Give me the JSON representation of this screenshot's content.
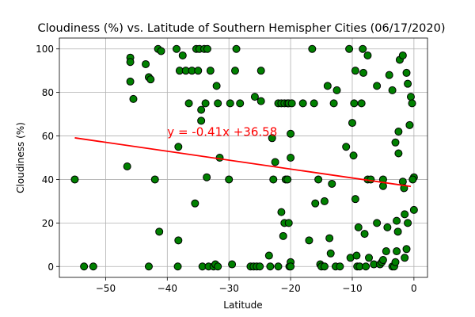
{
  "chart_data": {
    "type": "scatter",
    "title": "Cloudiness (%) vs. Latitude of Southern Hemispher Cities (06/17/2020)",
    "xlabel": "Latitude",
    "ylabel": "Cloudiness (%)",
    "xlim": [
      -57.5,
      2.2
    ],
    "ylim": [
      -5,
      105
    ],
    "xticks": [
      -50,
      -40,
      -30,
      -20,
      -10,
      0
    ],
    "yticks": [
      0,
      20,
      40,
      60,
      80,
      100
    ],
    "grid": true,
    "marker_color": "#008000",
    "marker_edge": "#000000",
    "line_color": "#ff0000",
    "annotation": {
      "text": "y = -0.41x +36.58",
      "x": -40,
      "y": 60
    },
    "regression": {
      "slope": -0.41,
      "intercept": 36.58,
      "x_range": [
        -55,
        -0.5
      ]
    },
    "points": [
      [
        -55,
        40
      ],
      [
        -53.5,
        0
      ],
      [
        -52,
        0
      ],
      [
        -46.5,
        46
      ],
      [
        -46,
        96
      ],
      [
        -46,
        94
      ],
      [
        -46,
        85
      ],
      [
        -45.5,
        77
      ],
      [
        -43.5,
        93
      ],
      [
        -43,
        87
      ],
      [
        -43,
        0
      ],
      [
        -42.7,
        86
      ],
      [
        -42,
        40
      ],
      [
        -41.5,
        100
      ],
      [
        -41.3,
        16
      ],
      [
        -41,
        99
      ],
      [
        -38.5,
        100
      ],
      [
        -38.3,
        0
      ],
      [
        -38.2,
        55
      ],
      [
        -38.2,
        12
      ],
      [
        -38,
        90
      ],
      [
        -37.5,
        97
      ],
      [
        -37,
        90
      ],
      [
        -36.5,
        75
      ],
      [
        -36,
        90
      ],
      [
        -35.5,
        29
      ],
      [
        -35.3,
        100
      ],
      [
        -35,
        90
      ],
      [
        -34.8,
        100
      ],
      [
        -34.5,
        67
      ],
      [
        -34.5,
        72
      ],
      [
        -34.3,
        0
      ],
      [
        -34,
        100
      ],
      [
        -33.8,
        75
      ],
      [
        -33.6,
        41
      ],
      [
        -33.5,
        100
      ],
      [
        -33.3,
        0
      ],
      [
        -33,
        90
      ],
      [
        -32.5,
        0
      ],
      [
        -32.2,
        1
      ],
      [
        -32,
        83
      ],
      [
        -31.8,
        0
      ],
      [
        -31.8,
        75
      ],
      [
        -31.5,
        50
      ],
      [
        -30,
        40
      ],
      [
        -29.8,
        75
      ],
      [
        -29.5,
        1
      ],
      [
        -29,
        90
      ],
      [
        -28.8,
        100
      ],
      [
        -28.2,
        75
      ],
      [
        -26.5,
        0
      ],
      [
        -26,
        0
      ],
      [
        -25.8,
        78
      ],
      [
        -25.5,
        0
      ],
      [
        -25,
        0
      ],
      [
        -24.8,
        76
      ],
      [
        -24.8,
        90
      ],
      [
        -23.5,
        5
      ],
      [
        -23.3,
        0
      ],
      [
        -23,
        59
      ],
      [
        -22.8,
        40
      ],
      [
        -22.5,
        48
      ],
      [
        -22,
        75
      ],
      [
        -22,
        0
      ],
      [
        -21.5,
        75
      ],
      [
        -21.5,
        25
      ],
      [
        -21.2,
        14
      ],
      [
        -21,
        75
      ],
      [
        -21,
        20
      ],
      [
        -20.8,
        40
      ],
      [
        -20.5,
        40
      ],
      [
        -20.5,
        75
      ],
      [
        -20.3,
        75
      ],
      [
        -20.3,
        20
      ],
      [
        -20.2,
        0
      ],
      [
        -20,
        61
      ],
      [
        -20,
        50
      ],
      [
        -20,
        2
      ],
      [
        -20,
        0
      ],
      [
        -19.8,
        75
      ],
      [
        -18,
        75
      ],
      [
        -17,
        12
      ],
      [
        -16.5,
        100
      ],
      [
        -16.2,
        75
      ],
      [
        -16,
        29
      ],
      [
        -15.5,
        40
      ],
      [
        -15.2,
        1
      ],
      [
        -15,
        0
      ],
      [
        -14.5,
        0
      ],
      [
        -14.5,
        30
      ],
      [
        -14,
        83
      ],
      [
        -13.7,
        13
      ],
      [
        -13.5,
        6
      ],
      [
        -13.3,
        38
      ],
      [
        -13,
        75
      ],
      [
        -12.7,
        0
      ],
      [
        -12.5,
        81
      ],
      [
        -12,
        0
      ],
      [
        -11,
        55
      ],
      [
        -10.5,
        100
      ],
      [
        -10.3,
        4
      ],
      [
        -10,
        66
      ],
      [
        -9.8,
        51
      ],
      [
        -9.7,
        75
      ],
      [
        -9.5,
        31
      ],
      [
        -9.5,
        90
      ],
      [
        -9.3,
        5
      ],
      [
        -9.2,
        0
      ],
      [
        -9,
        18
      ],
      [
        -8.8,
        0
      ],
      [
        -8.5,
        75
      ],
      [
        -8.3,
        100
      ],
      [
        -8.2,
        89
      ],
      [
        -8,
        15
      ],
      [
        -7.8,
        0
      ],
      [
        -7.5,
        40
      ],
      [
        -7.5,
        97
      ],
      [
        -7.3,
        4
      ],
      [
        -7,
        40
      ],
      [
        -6.5,
        1
      ],
      [
        -6,
        83
      ],
      [
        -6,
        20
      ],
      [
        -5.5,
        1
      ],
      [
        -5.2,
        2
      ],
      [
        -5,
        40
      ],
      [
        -5,
        37
      ],
      [
        -5,
        3
      ],
      [
        -4.5,
        7
      ],
      [
        -4.3,
        18
      ],
      [
        -4,
        88
      ],
      [
        -3.5,
        81
      ],
      [
        -3.5,
        0
      ],
      [
        -3.2,
        0
      ],
      [
        -3,
        57
      ],
      [
        -3,
        2
      ],
      [
        -2.8,
        7
      ],
      [
        -2.8,
        21
      ],
      [
        -2.6,
        16
      ],
      [
        -2.5,
        62
      ],
      [
        -2.5,
        52
      ],
      [
        -2.3,
        95
      ],
      [
        -1.8,
        97
      ],
      [
        -1.8,
        39
      ],
      [
        -1.6,
        36
      ],
      [
        -1.5,
        24
      ],
      [
        -1.5,
        4
      ],
      [
        -1.2,
        89
      ],
      [
        -1.2,
        8
      ],
      [
        -1,
        20
      ],
      [
        -1,
        84
      ],
      [
        -0.7,
        65
      ],
      [
        -0.5,
        78
      ],
      [
        -0.3,
        75
      ],
      [
        0,
        41
      ],
      [
        0,
        26
      ],
      [
        -0.2,
        40
      ]
    ]
  }
}
